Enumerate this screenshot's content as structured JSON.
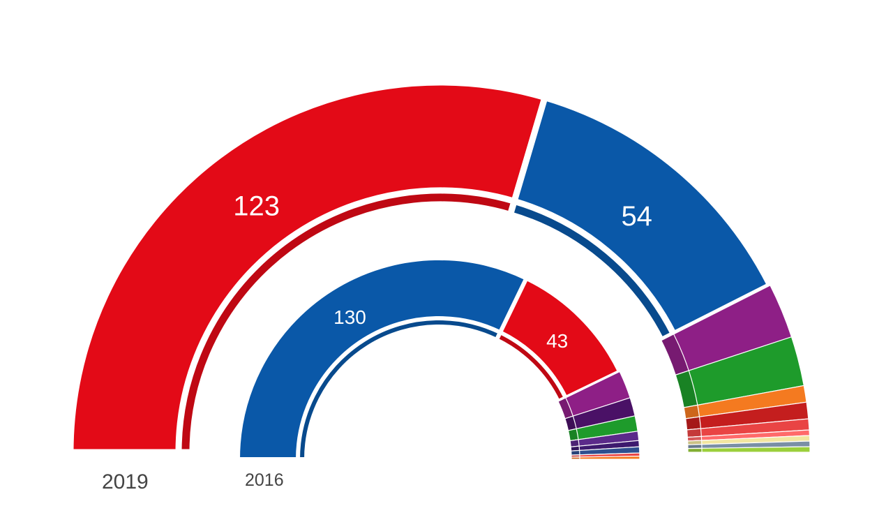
{
  "chart_data": [
    {
      "type": "pie",
      "variant": "half-donut",
      "year": "2019",
      "series": [
        {
          "value": 123,
          "label": "123",
          "color": "#e30a17"
        },
        {
          "value": 54,
          "label": "54",
          "color": "#0a58a8"
        },
        {
          "value": 10,
          "color": "#8e1f86"
        },
        {
          "value": 9,
          "color": "#1e9b2b"
        },
        {
          "value": 3,
          "color": "#f47a20"
        },
        {
          "value": 3,
          "color": "#c41e1e"
        },
        {
          "value": 2,
          "color": "#e94444"
        },
        {
          "value": 1,
          "color": "#ff6a6a"
        },
        {
          "value": 1,
          "color": "#f2e6a0"
        },
        {
          "value": 1,
          "color": "#7a8fa5"
        },
        {
          "value": 1,
          "color": "#9bcf3b"
        }
      ]
    },
    {
      "type": "pie",
      "variant": "half-donut",
      "year": "2016",
      "series": [
        {
          "value": 130,
          "label": "130",
          "color": "#0a58a8"
        },
        {
          "value": 43,
          "label": "43",
          "color": "#e30a17"
        },
        {
          "value": 9,
          "color": "#8e1f86"
        },
        {
          "value": 6,
          "color": "#4a1166"
        },
        {
          "value": 5,
          "color": "#1e9b2b"
        },
        {
          "value": 3,
          "color": "#5b2a8a"
        },
        {
          "value": 2,
          "color": "#3d1a6e"
        },
        {
          "value": 2,
          "color": "#2e4f8f"
        },
        {
          "value": 1,
          "color": "#e94444"
        },
        {
          "value": 1,
          "color": "#f47a20"
        }
      ]
    }
  ],
  "labels": {
    "year_2019": "2019",
    "year_2016": "2016"
  }
}
